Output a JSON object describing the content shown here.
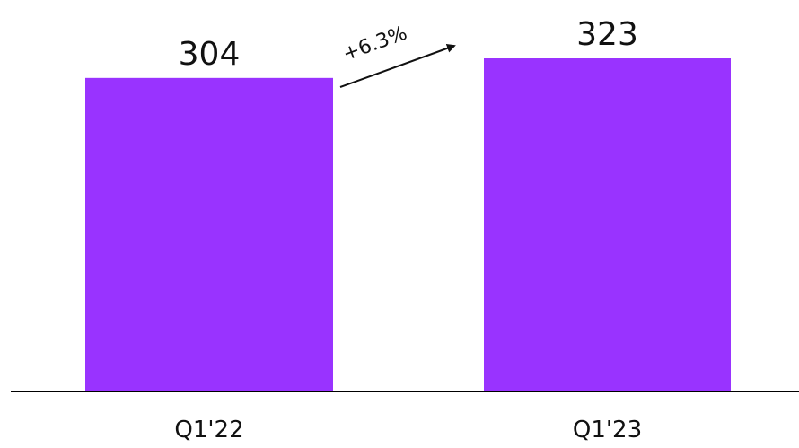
{
  "chart_data": {
    "type": "bar",
    "categories": [
      "Q1'22",
      "Q1'23"
    ],
    "values": [
      304,
      323
    ],
    "data_labels": [
      "304",
      "323"
    ],
    "annotation": "+6.3%",
    "ylim": [
      0,
      323
    ],
    "grid": false,
    "legend": "none",
    "bar_color": "#9933ff",
    "axis_color": "#000000"
  }
}
